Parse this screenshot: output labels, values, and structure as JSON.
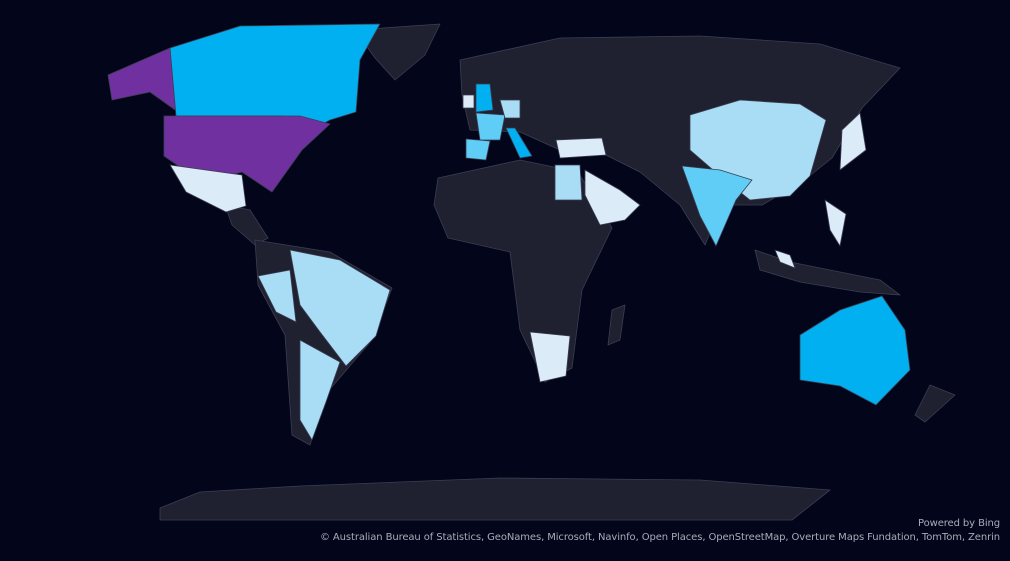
{
  "attribution": {
    "powered_by": "Powered by Bing",
    "credits": "© Australian Bureau of Statistics, GeoNames, Microsoft, Navinfo, Open Places, OpenStreetMap, Overture Maps Fundation, TomTom, Zenrin"
  },
  "colors": {
    "background": "#03061a",
    "land": "#1f2030",
    "border": "#3b3e52",
    "purple": "#7030a0",
    "blue": "#00b0f0",
    "mid_blue": "#5fcdf5",
    "light_blue": "#a9dcf5",
    "pale_blue": "#dcebf8"
  },
  "shaded_regions": {
    "united-states": "purple",
    "alaska": "purple",
    "canada": "blue",
    "australia": "blue",
    "united-kingdom": "blue",
    "italy": "blue",
    "india": "mid_blue",
    "france": "mid_blue",
    "spain": "mid_blue",
    "china": "light_blue",
    "brazil": "light_blue",
    "argentina": "light_blue",
    "peru": "light_blue",
    "germany": "light_blue",
    "egypt": "light_blue",
    "mexico": "pale_blue",
    "saudi-arabia": "pale_blue",
    "turkey": "pale_blue",
    "south-africa": "pale_blue",
    "japan": "pale_blue",
    "philippines": "pale_blue",
    "malaysia": "pale_blue",
    "ireland": "pale_blue"
  }
}
